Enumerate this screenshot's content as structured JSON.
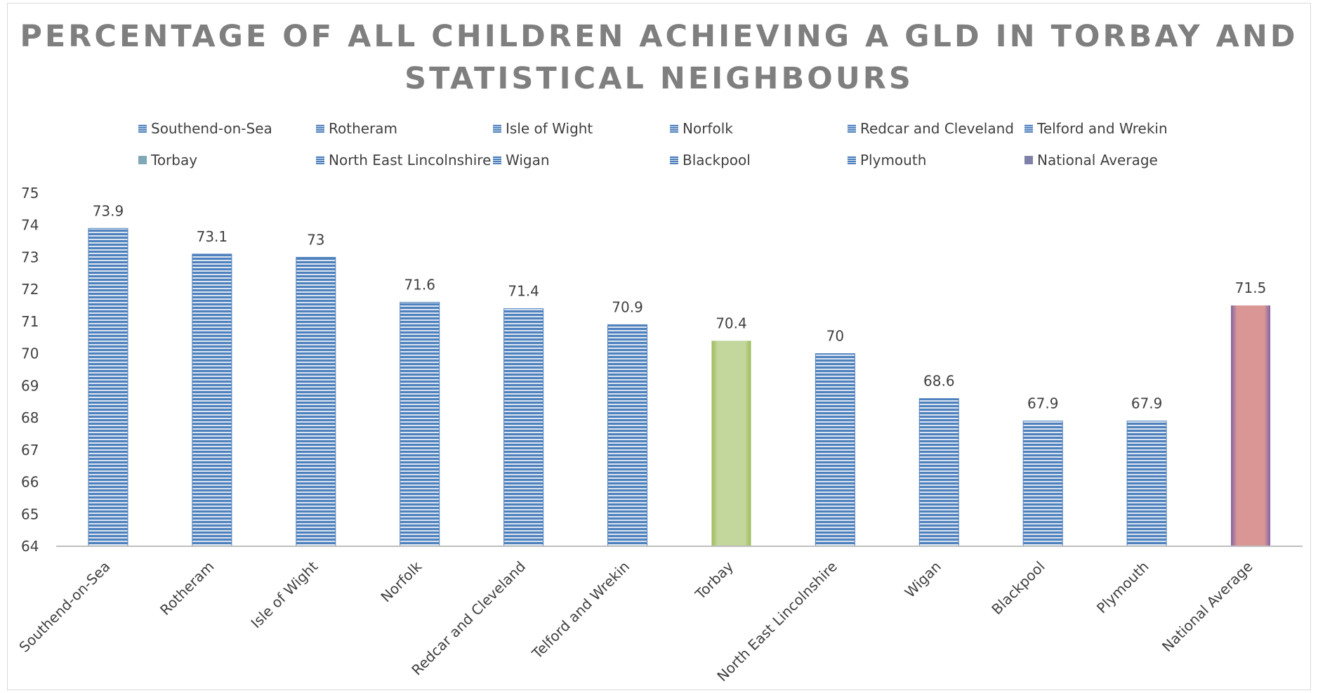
{
  "chart_data": {
    "type": "bar",
    "title": "PERCENTAGE OF ALL CHILDREN ACHIEVING A GLD IN TORBAY AND STATISTICAL NEIGHBOURS",
    "categories": [
      "Southend-on-Sea",
      "Rotheram",
      "Isle of Wight",
      "Norfolk",
      "Redcar and Cleveland",
      "Telford and Wrekin",
      "Torbay",
      "North East Lincolnshire",
      "Wigan",
      "Blackpool",
      "Plymouth",
      "National Average"
    ],
    "values": [
      73.9,
      73.1,
      73,
      71.6,
      71.4,
      70.9,
      70.4,
      70,
      68.6,
      67.9,
      67.9,
      71.5
    ],
    "data_labels": [
      "73.9",
      "73.1",
      "73",
      "71.6",
      "71.4",
      "70.9",
      "70.4",
      "70",
      "68.6",
      "67.9",
      "67.9",
      "71.5"
    ],
    "legend": [
      "Southend-on-Sea",
      "Rotheram",
      "Isle of Wight",
      "Norfolk",
      "Redcar and Cleveland",
      "Telford and Wrekin",
      "Torbay",
      "North East Lincolnshire",
      "Wigan",
      "Blackpool",
      "Plymouth",
      "National Average"
    ],
    "legend_position": "top",
    "yticks": [
      64,
      65,
      66,
      67,
      68,
      69,
      70,
      71,
      72,
      73,
      74,
      75
    ],
    "ylim": [
      64,
      75
    ],
    "xlabel": "",
    "ylabel": "",
    "grid": false,
    "colors": {
      "default_bar": "#4f81bd",
      "default_bar_light": "#dbe5f1",
      "torbay_bar": "#c3d69b",
      "national_average_bar": "#d99694",
      "national_average_border": "#8064a2",
      "axis": "#bfbfbf",
      "title": "#7f7f7f",
      "text": "#404040"
    }
  }
}
